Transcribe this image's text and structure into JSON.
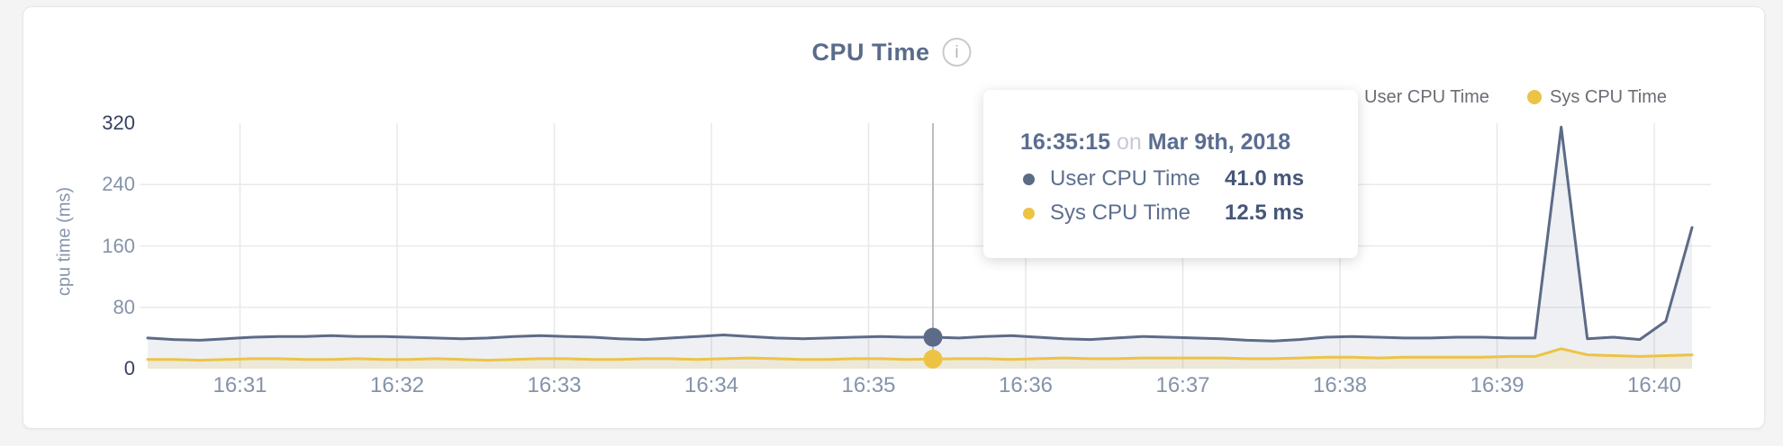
{
  "title": {
    "text": "CPU Time",
    "info_glyph": "i"
  },
  "legend": [
    {
      "label": "User CPU Time",
      "color": "#5c6b87"
    },
    {
      "label": "Sys CPU Time",
      "color": "#ecc345"
    }
  ],
  "tooltip": {
    "time": "16:35:15",
    "conjunction": "on",
    "date": "Mar 9th, 2018",
    "rows": [
      {
        "label": "User CPU Time",
        "value": "41.0 ms",
        "color": "#5c6b87"
      },
      {
        "label": "Sys CPU Time",
        "value": "12.5 ms",
        "color": "#ecc345"
      }
    ]
  },
  "chart_data": {
    "type": "area",
    "title": "CPU Time",
    "ylabel": "cpu time (ms)",
    "ylim": [
      0,
      320
    ],
    "y_ticks": [
      0,
      80,
      160,
      240,
      320
    ],
    "x_ticks": [
      "16:31",
      "16:32",
      "16:33",
      "16:34",
      "16:35",
      "16:36",
      "16:37",
      "16:38",
      "16:39",
      "16:40"
    ],
    "x_start": "16:30:15",
    "x_interval_seconds": 10,
    "grid": true,
    "legend_position": "top-right",
    "series": [
      {
        "name": "User CPU Time",
        "color": "#5c6b87",
        "values": [
          40,
          38,
          37,
          39,
          41,
          42,
          42,
          43,
          42,
          42,
          41,
          40,
          39,
          40,
          42,
          43,
          42,
          41,
          39,
          38,
          40,
          42,
          44,
          42,
          40,
          39,
          40,
          41,
          42,
          41,
          41,
          40,
          42,
          43,
          41,
          39,
          38,
          40,
          42,
          41,
          40,
          39,
          37,
          36,
          38,
          41,
          42,
          41,
          40,
          40,
          41,
          41,
          40,
          40,
          315,
          39,
          41,
          38,
          62,
          184
        ]
      },
      {
        "name": "Sys CPU Time",
        "color": "#ecc345",
        "values": [
          12,
          12,
          11,
          12,
          13,
          13,
          12,
          12,
          13,
          12,
          12,
          13,
          12,
          11,
          12,
          13,
          13,
          12,
          12,
          13,
          13,
          12,
          13,
          14,
          13,
          12,
          12,
          13,
          13,
          12,
          12.5,
          13,
          13,
          12,
          13,
          14,
          13,
          13,
          14,
          14,
          14,
          14,
          13,
          13,
          14,
          15,
          15,
          14,
          15,
          15,
          15,
          15,
          16,
          16,
          26,
          18,
          17,
          16,
          17,
          18
        ]
      }
    ],
    "hover": {
      "index": 30,
      "time": "16:35:15",
      "date": "Mar 9th, 2018",
      "user_ms": 41.0,
      "sys_ms": 12.5
    }
  }
}
